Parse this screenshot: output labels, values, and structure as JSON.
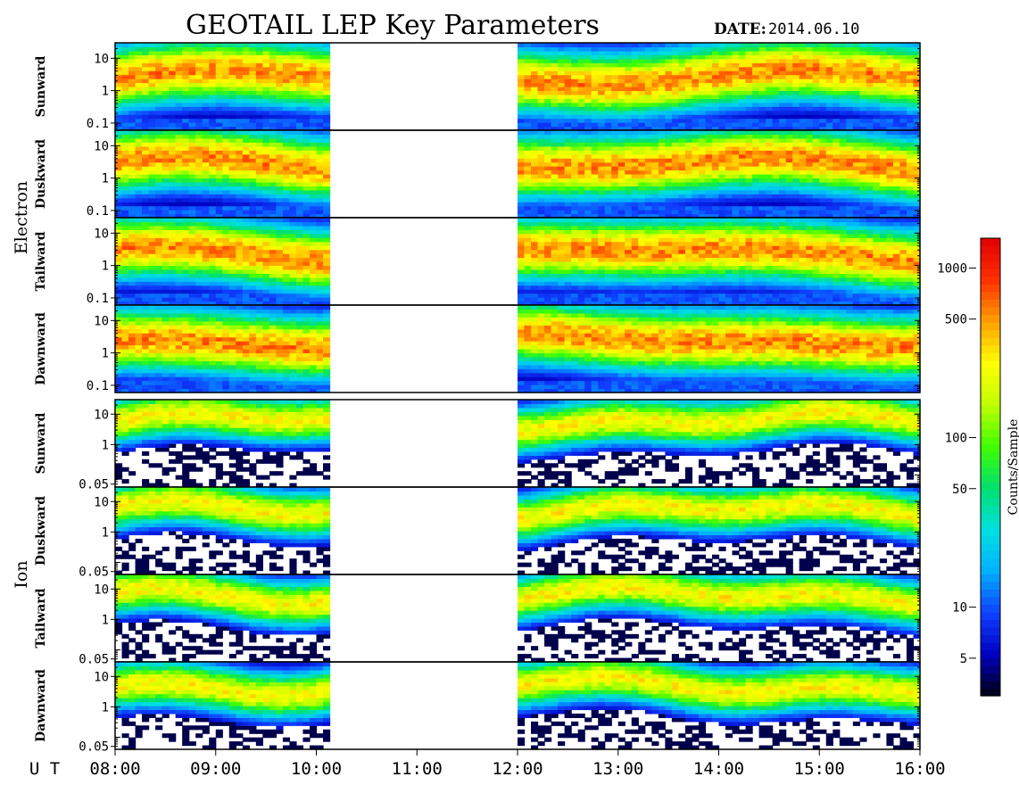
{
  "title": "GEOTAIL LEP Key Parameters",
  "date_label": "DATE:",
  "date_value": "2014.06.10",
  "chart_data": {
    "type": "heatmap",
    "title": "GEOTAIL LEP Key Parameters",
    "date": "2014.06.10",
    "x_axis": {
      "label": "U T",
      "range": [
        "08:00",
        "16:00"
      ],
      "ticks": [
        "08:00",
        "09:00",
        "10:00",
        "11:00",
        "12:00",
        "13:00",
        "14:00",
        "15:00",
        "16:00"
      ],
      "data_gap": [
        "10:05",
        "12:00"
      ]
    },
    "groups": [
      {
        "name": "Electron",
        "y_ticks": [
          "10",
          "1",
          "0.1"
        ],
        "y_range": [
          0.06,
          30
        ],
        "panels": [
          {
            "name": "Sunward",
            "peak": 2.5
          },
          {
            "name": "Duskward",
            "peak": 2.5
          },
          {
            "name": "Tailward",
            "peak": 2.5
          },
          {
            "name": "Dawnward",
            "peak": 2.5
          }
        ]
      },
      {
        "name": "Ion",
        "y_ticks": [
          "10",
          "1",
          "0.05"
        ],
        "y_range": [
          0.04,
          30
        ],
        "panels": [
          {
            "name": "Sunward",
            "peak": 6
          },
          {
            "name": "Duskward",
            "peak": 5
          },
          {
            "name": "Tailward",
            "peak": 6
          },
          {
            "name": "Dawnward",
            "peak": 5
          }
        ]
      }
    ],
    "colorbar": {
      "label": "Counts/Sample",
      "scale": "log",
      "range": [
        3,
        1500
      ],
      "ticks": [
        "5",
        "10",
        "50",
        "100",
        "500",
        "1000"
      ],
      "colors": [
        "#000010",
        "#0000c0",
        "#1040ff",
        "#00b0ff",
        "#00e0e0",
        "#00e070",
        "#40ff00",
        "#c0ff00",
        "#ffff00",
        "#ffa000",
        "#ff3000",
        "#e00000"
      ]
    }
  }
}
